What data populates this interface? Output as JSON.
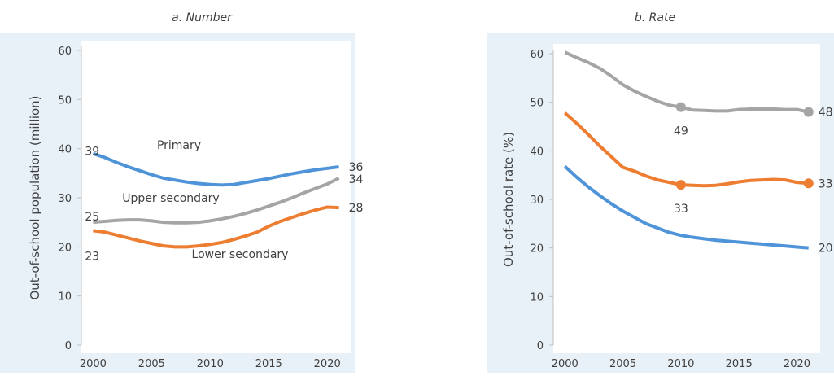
{
  "chart_data": [
    {
      "type": "line",
      "title": "a. Number",
      "ylabel": "Out-of-school population (million)",
      "x": [
        2000,
        2001,
        2002,
        2003,
        2004,
        2005,
        2006,
        2007,
        2008,
        2009,
        2010,
        2011,
        2012,
        2013,
        2014,
        2015,
        2016,
        2017,
        2018,
        2019,
        2020,
        2021
      ],
      "xlim": [
        1999,
        2022
      ],
      "xticks": [
        2000,
        2005,
        2010,
        2015,
        2020
      ],
      "ylim": [
        0,
        60
      ],
      "yticks": [
        0,
        10,
        20,
        30,
        40,
        50,
        60
      ],
      "series": [
        {
          "name": "Primary",
          "color": "#4f94d8",
          "values": [
            39,
            38.2,
            37.2,
            36.3,
            35.5,
            34.7,
            34,
            33.6,
            33.2,
            32.9,
            32.7,
            32.6,
            32.7,
            33.1,
            33.5,
            33.9,
            34.4,
            34.9,
            35.3,
            35.7,
            36,
            36.3
          ],
          "value_labels": [
            "39",
            null,
            null,
            null,
            null,
            null,
            null,
            null,
            null,
            null,
            null,
            null,
            null,
            null,
            null,
            null,
            null,
            null,
            null,
            null,
            null,
            "36"
          ]
        },
        {
          "name": "Upper secondary",
          "color": "#a5a5a5",
          "values": [
            25,
            25.2,
            25.4,
            25.5,
            25.5,
            25.3,
            25,
            24.9,
            24.9,
            25,
            25.3,
            25.7,
            26.2,
            26.8,
            27.5,
            28.3,
            29.1,
            30,
            31,
            31.9,
            32.8,
            34
          ],
          "value_labels": [
            "25",
            null,
            null,
            null,
            null,
            null,
            null,
            null,
            null,
            null,
            null,
            null,
            null,
            null,
            null,
            null,
            null,
            null,
            null,
            null,
            null,
            "34"
          ]
        },
        {
          "name": "Lower secondary",
          "color": "#ed7d31",
          "values": [
            23.3,
            23,
            22.4,
            21.8,
            21.2,
            20.7,
            20.2,
            20,
            20,
            20.2,
            20.5,
            20.9,
            21.5,
            22.2,
            23,
            24.2,
            25.2,
            26,
            26.8,
            27.5,
            28.1,
            28
          ],
          "value_labels": [
            "23",
            null,
            null,
            null,
            null,
            null,
            null,
            null,
            null,
            null,
            null,
            null,
            null,
            null,
            null,
            null,
            null,
            null,
            null,
            null,
            null,
            "28"
          ]
        }
      ]
    },
    {
      "type": "line",
      "title": "b. Rate",
      "ylabel": "Out-of-school rate (%)",
      "x": [
        2000,
        2001,
        2002,
        2003,
        2004,
        2005,
        2006,
        2007,
        2008,
        2009,
        2010,
        2011,
        2012,
        2013,
        2014,
        2015,
        2016,
        2017,
        2018,
        2019,
        2020,
        2021
      ],
      "xlim": [
        1999,
        2022
      ],
      "xticks": [
        2000,
        2005,
        2010,
        2015,
        2020
      ],
      "ylim": [
        0,
        60
      ],
      "yticks": [
        0,
        10,
        20,
        30,
        40,
        50,
        60
      ],
      "series": [
        {
          "color": "#a5a5a5",
          "markers": true,
          "values": [
            60.3,
            59.2,
            58.2,
            57,
            55.4,
            53.6,
            52.3,
            51.2,
            50.2,
            49.4,
            49,
            48.4,
            48.3,
            48.2,
            48.2,
            48.5,
            48.6,
            48.6,
            48.6,
            48.5,
            48.5,
            48
          ],
          "value_labels": [
            null,
            null,
            null,
            null,
            null,
            null,
            null,
            null,
            null,
            null,
            "49",
            null,
            null,
            null,
            null,
            null,
            null,
            null,
            null,
            null,
            null,
            "48"
          ]
        },
        {
          "color": "#ed7d31",
          "markers": true,
          "values": [
            47.8,
            45.7,
            43.4,
            41,
            38.8,
            36.6,
            35.8,
            34.8,
            34,
            33.5,
            33,
            32.9,
            32.8,
            32.9,
            33.2,
            33.6,
            33.9,
            34,
            34.1,
            34,
            33.5,
            33.3
          ],
          "value_labels": [
            null,
            null,
            null,
            null,
            null,
            null,
            null,
            null,
            null,
            null,
            "33",
            null,
            null,
            null,
            null,
            null,
            null,
            null,
            null,
            null,
            null,
            "33"
          ]
        },
        {
          "color": "#4f94d8",
          "markers": false,
          "values": [
            36.8,
            34.6,
            32.6,
            30.8,
            29.1,
            27.6,
            26.3,
            25,
            24.1,
            23.2,
            22.6,
            22.2,
            21.9,
            21.6,
            21.4,
            21.2,
            21,
            20.8,
            20.6,
            20.4,
            20.2,
            20
          ],
          "value_labels": [
            null,
            null,
            null,
            null,
            null,
            null,
            null,
            null,
            null,
            null,
            null,
            null,
            null,
            null,
            null,
            null,
            null,
            null,
            null,
            null,
            null,
            "20"
          ]
        }
      ]
    }
  ]
}
